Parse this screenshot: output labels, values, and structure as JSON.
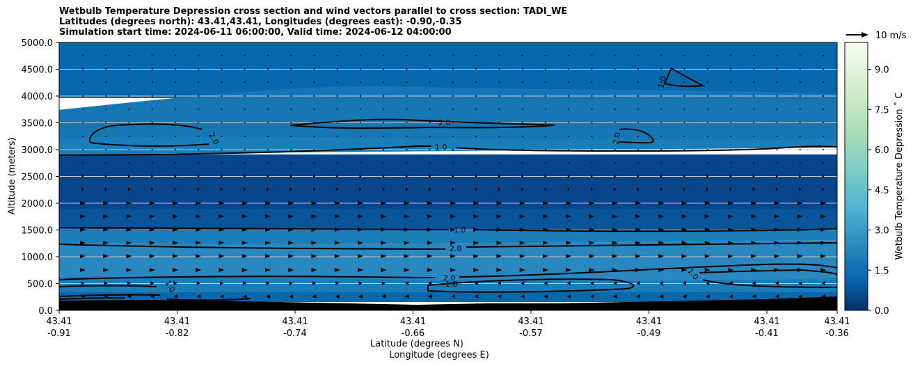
{
  "chart_data": {
    "type": "contour",
    "title_lines": [
      "Wetbulb Temperature Depression cross section and wind vectors parallel to cross section: TADI_WE",
      "Latitudes (degrees north): 43.41,43.41, Longitudes (degrees east): -0.90,-0.35",
      "Simulation start time: 2024-06-11 06:00:00, Valid time: 2024-06-12 04:00:00"
    ],
    "ylabel": "Altitude (meters)",
    "xlabel_lat": "Latitude (degrees N)",
    "xlabel_lon": "Longitude (degrees E)",
    "ylim": [
      0,
      5000
    ],
    "yticks": [
      "0.0",
      "500.0",
      "1000.0",
      "1500.0",
      "2000.0",
      "2500.0",
      "3000.0",
      "3500.0",
      "4000.0",
      "4500.0",
      "5000.0"
    ],
    "xticks": [
      {
        "lat": "43.41",
        "lon": "-0.91"
      },
      {
        "lat": "43.41",
        "lon": "-0.82"
      },
      {
        "lat": "43.41",
        "lon": "-0.74"
      },
      {
        "lat": "43.41",
        "lon": "-0.66"
      },
      {
        "lat": "43.41",
        "lon": "-0.57"
      },
      {
        "lat": "43.41",
        "lon": "-0.49"
      },
      {
        "lat": "43.41",
        "lon": "-0.41"
      },
      {
        "lat": "43.41",
        "lon": "-0.36"
      }
    ],
    "colorbar": {
      "label": "Wetbulb Temperature Depression ˚ C",
      "range": [
        0,
        10
      ],
      "ticks": [
        "0.0",
        "1.5",
        "3.0",
        "4.5",
        "6.0",
        "7.5",
        "9.0"
      ],
      "colormap": "GnBu_r"
    },
    "wind_key": "10 m/s",
    "contour_labels": [
      "2.0",
      "1.0",
      "1.0",
      "2.0",
      "2.0",
      "2.0",
      "1.0",
      "1.0",
      "1.0"
    ],
    "grid": true
  }
}
